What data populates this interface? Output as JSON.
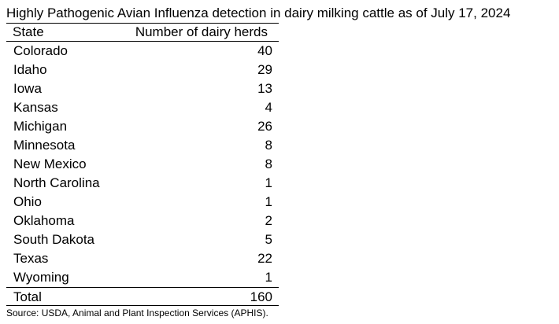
{
  "title": "Highly Pathogenic Avian Influenza detection in dairy milking cattle as of July 17, 2024",
  "table": {
    "headers": {
      "state": "State",
      "herds": "Number of dairy herds"
    },
    "rows": [
      {
        "state": "Colorado",
        "herds": "40"
      },
      {
        "state": "Idaho",
        "herds": "29"
      },
      {
        "state": "Iowa",
        "herds": "13"
      },
      {
        "state": "Kansas",
        "herds": "4"
      },
      {
        "state": "Michigan",
        "herds": "26"
      },
      {
        "state": "Minnesota",
        "herds": "8"
      },
      {
        "state": "New Mexico",
        "herds": "8"
      },
      {
        "state": "North Carolina",
        "herds": "1"
      },
      {
        "state": "Ohio",
        "herds": "1"
      },
      {
        "state": "Oklahoma",
        "herds": "2"
      },
      {
        "state": "South Dakota",
        "herds": "5"
      },
      {
        "state": "Texas",
        "herds": "22"
      },
      {
        "state": "Wyoming",
        "herds": "1"
      }
    ],
    "total": {
      "label": "Total",
      "herds": "160"
    }
  },
  "source": "Source: USDA, Animal and Plant Inspection Services (APHIS)."
}
